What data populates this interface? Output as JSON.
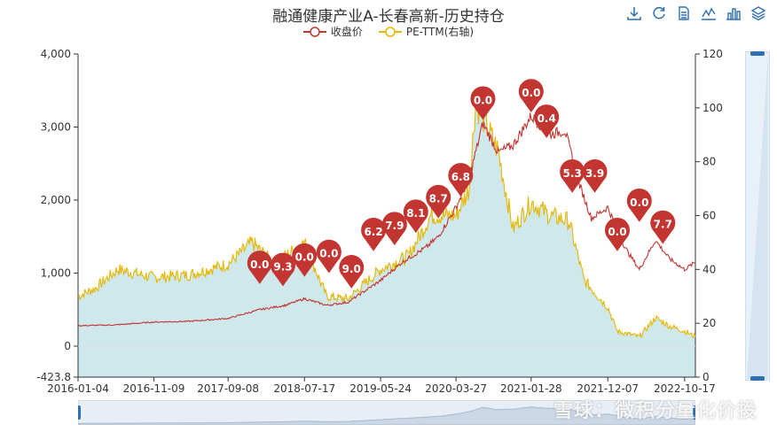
{
  "title": "融通健康产业A-长春高新-历史持仓",
  "legend": [
    {
      "name": "收盘价",
      "color": "#c23531"
    },
    {
      "name": "PE-TTM(右轴)",
      "color": "#e6b600"
    }
  ],
  "toolbar": [
    "download-icon",
    "refresh-icon",
    "data-view-icon",
    "line-chart-icon",
    "bar-chart-icon",
    "stack-icon"
  ],
  "watermark": "雪球：微积分量化价投",
  "chart_data": {
    "type": "line",
    "title": "融通健康产业A-长春高新-历史持仓",
    "x_ticks": [
      "2016-01-04",
      "2016-11-09",
      "2017-09-08",
      "2018-07-17",
      "2019-05-24",
      "2020-03-27",
      "2021-01-28",
      "2021-12-07",
      "2022-10-17"
    ],
    "x_range": [
      "2016-01-04",
      "2022-11-30"
    ],
    "y_left": {
      "ticks": [
        "4,000",
        "3,000",
        "2,000",
        "1,000",
        "0",
        "-423.8"
      ],
      "min": -423.8,
      "max": 4000
    },
    "y_right": {
      "ticks": [
        0,
        20,
        40,
        60,
        80,
        100,
        120
      ],
      "min": 0,
      "max": 120
    },
    "series": [
      {
        "name": "收盘价",
        "axis": "left",
        "color": "#c23531",
        "points": [
          [
            "2016-01-04",
            280
          ],
          [
            "2016-06-01",
            290
          ],
          [
            "2016-11-09",
            330
          ],
          [
            "2017-04-01",
            340
          ],
          [
            "2017-09-08",
            380
          ],
          [
            "2018-01-15",
            500
          ],
          [
            "2018-05-01",
            560
          ],
          [
            "2018-07-17",
            650
          ],
          [
            "2018-10-15",
            560
          ],
          [
            "2019-01-10",
            600
          ],
          [
            "2019-05-24",
            900
          ],
          [
            "2019-08-20",
            1150
          ],
          [
            "2019-11-25",
            1350
          ],
          [
            "2020-01-15",
            1500
          ],
          [
            "2020-03-27",
            1900
          ],
          [
            "2020-05-20",
            2300
          ],
          [
            "2020-07-15",
            3050
          ],
          [
            "2020-09-15",
            2650
          ],
          [
            "2020-11-15",
            2750
          ],
          [
            "2021-01-28",
            3150
          ],
          [
            "2021-04-15",
            2900
          ],
          [
            "2021-06-15",
            2950
          ],
          [
            "2021-08-15",
            2200
          ],
          [
            "2021-10-01",
            1750
          ],
          [
            "2021-12-07",
            1900
          ],
          [
            "2022-02-15",
            1350
          ],
          [
            "2022-04-15",
            1050
          ],
          [
            "2022-06-20",
            1450
          ],
          [
            "2022-08-15",
            1200
          ],
          [
            "2022-10-17",
            1050
          ],
          [
            "2022-11-30",
            1150
          ]
        ]
      },
      {
        "name": "PE-TTM(右轴)",
        "axis": "right",
        "color": "#e6b600",
        "points": [
          [
            "2016-01-04",
            30
          ],
          [
            "2016-03-15",
            33
          ],
          [
            "2016-06-15",
            40
          ],
          [
            "2016-11-09",
            37
          ],
          [
            "2017-04-01",
            38
          ],
          [
            "2017-09-08",
            42
          ],
          [
            "2017-12-15",
            50
          ],
          [
            "2018-03-15",
            42
          ],
          [
            "2018-07-17",
            50
          ],
          [
            "2018-10-15",
            30
          ],
          [
            "2019-01-10",
            29
          ],
          [
            "2019-05-24",
            40
          ],
          [
            "2019-09-15",
            45
          ],
          [
            "2019-12-15",
            60
          ],
          [
            "2020-03-27",
            60
          ],
          [
            "2020-05-20",
            70
          ],
          [
            "2020-06-15",
            102
          ],
          [
            "2020-09-15",
            84
          ],
          [
            "2020-11-15",
            55
          ],
          [
            "2021-01-28",
            65
          ],
          [
            "2021-04-15",
            60
          ],
          [
            "2021-07-01",
            58
          ],
          [
            "2021-09-01",
            36
          ],
          [
            "2021-12-07",
            26
          ],
          [
            "2022-01-15",
            17
          ],
          [
            "2022-04-15",
            15
          ],
          [
            "2022-06-20",
            22
          ],
          [
            "2022-08-15",
            19
          ],
          [
            "2022-10-17",
            17
          ],
          [
            "2022-11-30",
            15
          ]
        ]
      }
    ],
    "holdings_markers": [
      {
        "date": "2018-01-15",
        "value": "0.0"
      },
      {
        "date": "2018-04-20",
        "value": "9.3"
      },
      {
        "date": "2018-07-17",
        "value": "0.0"
      },
      {
        "date": "2018-10-25",
        "value": "0.0"
      },
      {
        "date": "2019-01-25",
        "value": "9.0"
      },
      {
        "date": "2019-04-25",
        "value": "6.2"
      },
      {
        "date": "2019-07-20",
        "value": "7.9"
      },
      {
        "date": "2019-10-15",
        "value": "8.1"
      },
      {
        "date": "2020-01-15",
        "value": "8.7"
      },
      {
        "date": "2020-04-15",
        "value": "6.8"
      },
      {
        "date": "2020-07-15",
        "value": "0.0"
      },
      {
        "date": "2021-01-28",
        "value": "0.0"
      },
      {
        "date": "2021-04-01",
        "value": "0.4"
      },
      {
        "date": "2021-07-15",
        "value": "5.3"
      },
      {
        "date": "2021-10-15",
        "value": "3.9"
      },
      {
        "date": "2022-01-15",
        "value": "0.0"
      },
      {
        "date": "2022-04-15",
        "value": "0.0"
      },
      {
        "date": "2022-07-20",
        "value": "7.7"
      }
    ],
    "marker_price": [
      850,
      820,
      950,
      1000,
      790,
      1300,
      1380,
      1550,
      1750,
      2050,
      3100,
      3200,
      2850,
      2100,
      2100,
      1300,
      1700,
      1400
    ],
    "grid": false,
    "legend_position": "top"
  }
}
